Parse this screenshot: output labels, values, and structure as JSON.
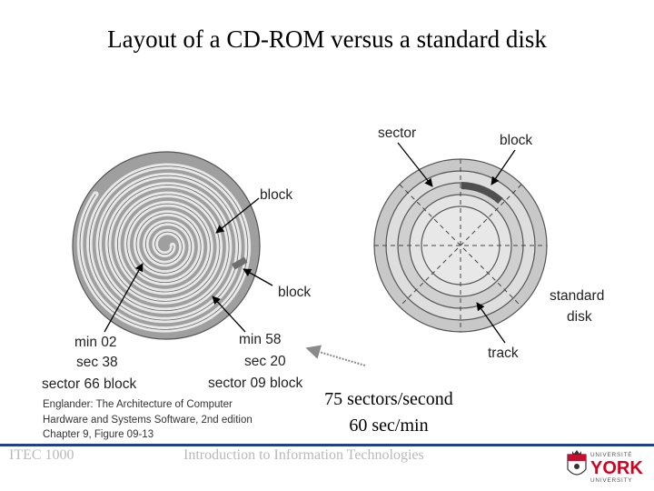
{
  "slide": {
    "title": "Layout of a CD-ROM versus a standard disk",
    "note_line1": "75 sectors/second",
    "note_line2": "60 sec/min"
  },
  "figure": {
    "cd": {
      "label_block": "block",
      "label_block2": "block",
      "addr1_l1": "min 02",
      "addr1_l2": "sec 38",
      "addr1_l3": "sector 66 block",
      "addr2_l1": "min 58",
      "addr2_l2": "sec 20",
      "addr2_l3": "sector 09 block"
    },
    "disk": {
      "label_sector": "sector",
      "label_block": "block",
      "label_standard": "standard",
      "label_disk": "disk",
      "label_track": "track"
    },
    "credit": {
      "line1": "Englander: The Architecture of Computer",
      "line2": "Hardware and Systems Software, 2nd edition",
      "line3": "Chapter 9, Figure 09-13"
    }
  },
  "footer": {
    "course": "ITEC 1000",
    "center": "Introduction to Information Technologies"
  },
  "logo": {
    "top_text": "UNIVERSITÉ",
    "main_text": "YORK",
    "bottom_text": "UNIVERSITY",
    "main_color": "#d8001f",
    "text_color": "#555555"
  },
  "colors": {
    "rule": "#1f3f8f",
    "footer_text": "#b9b9b9",
    "disc_fill": "#d3d3d3",
    "disc_dark": "#9f9f9f",
    "block_fill": "#6f6f6f"
  }
}
